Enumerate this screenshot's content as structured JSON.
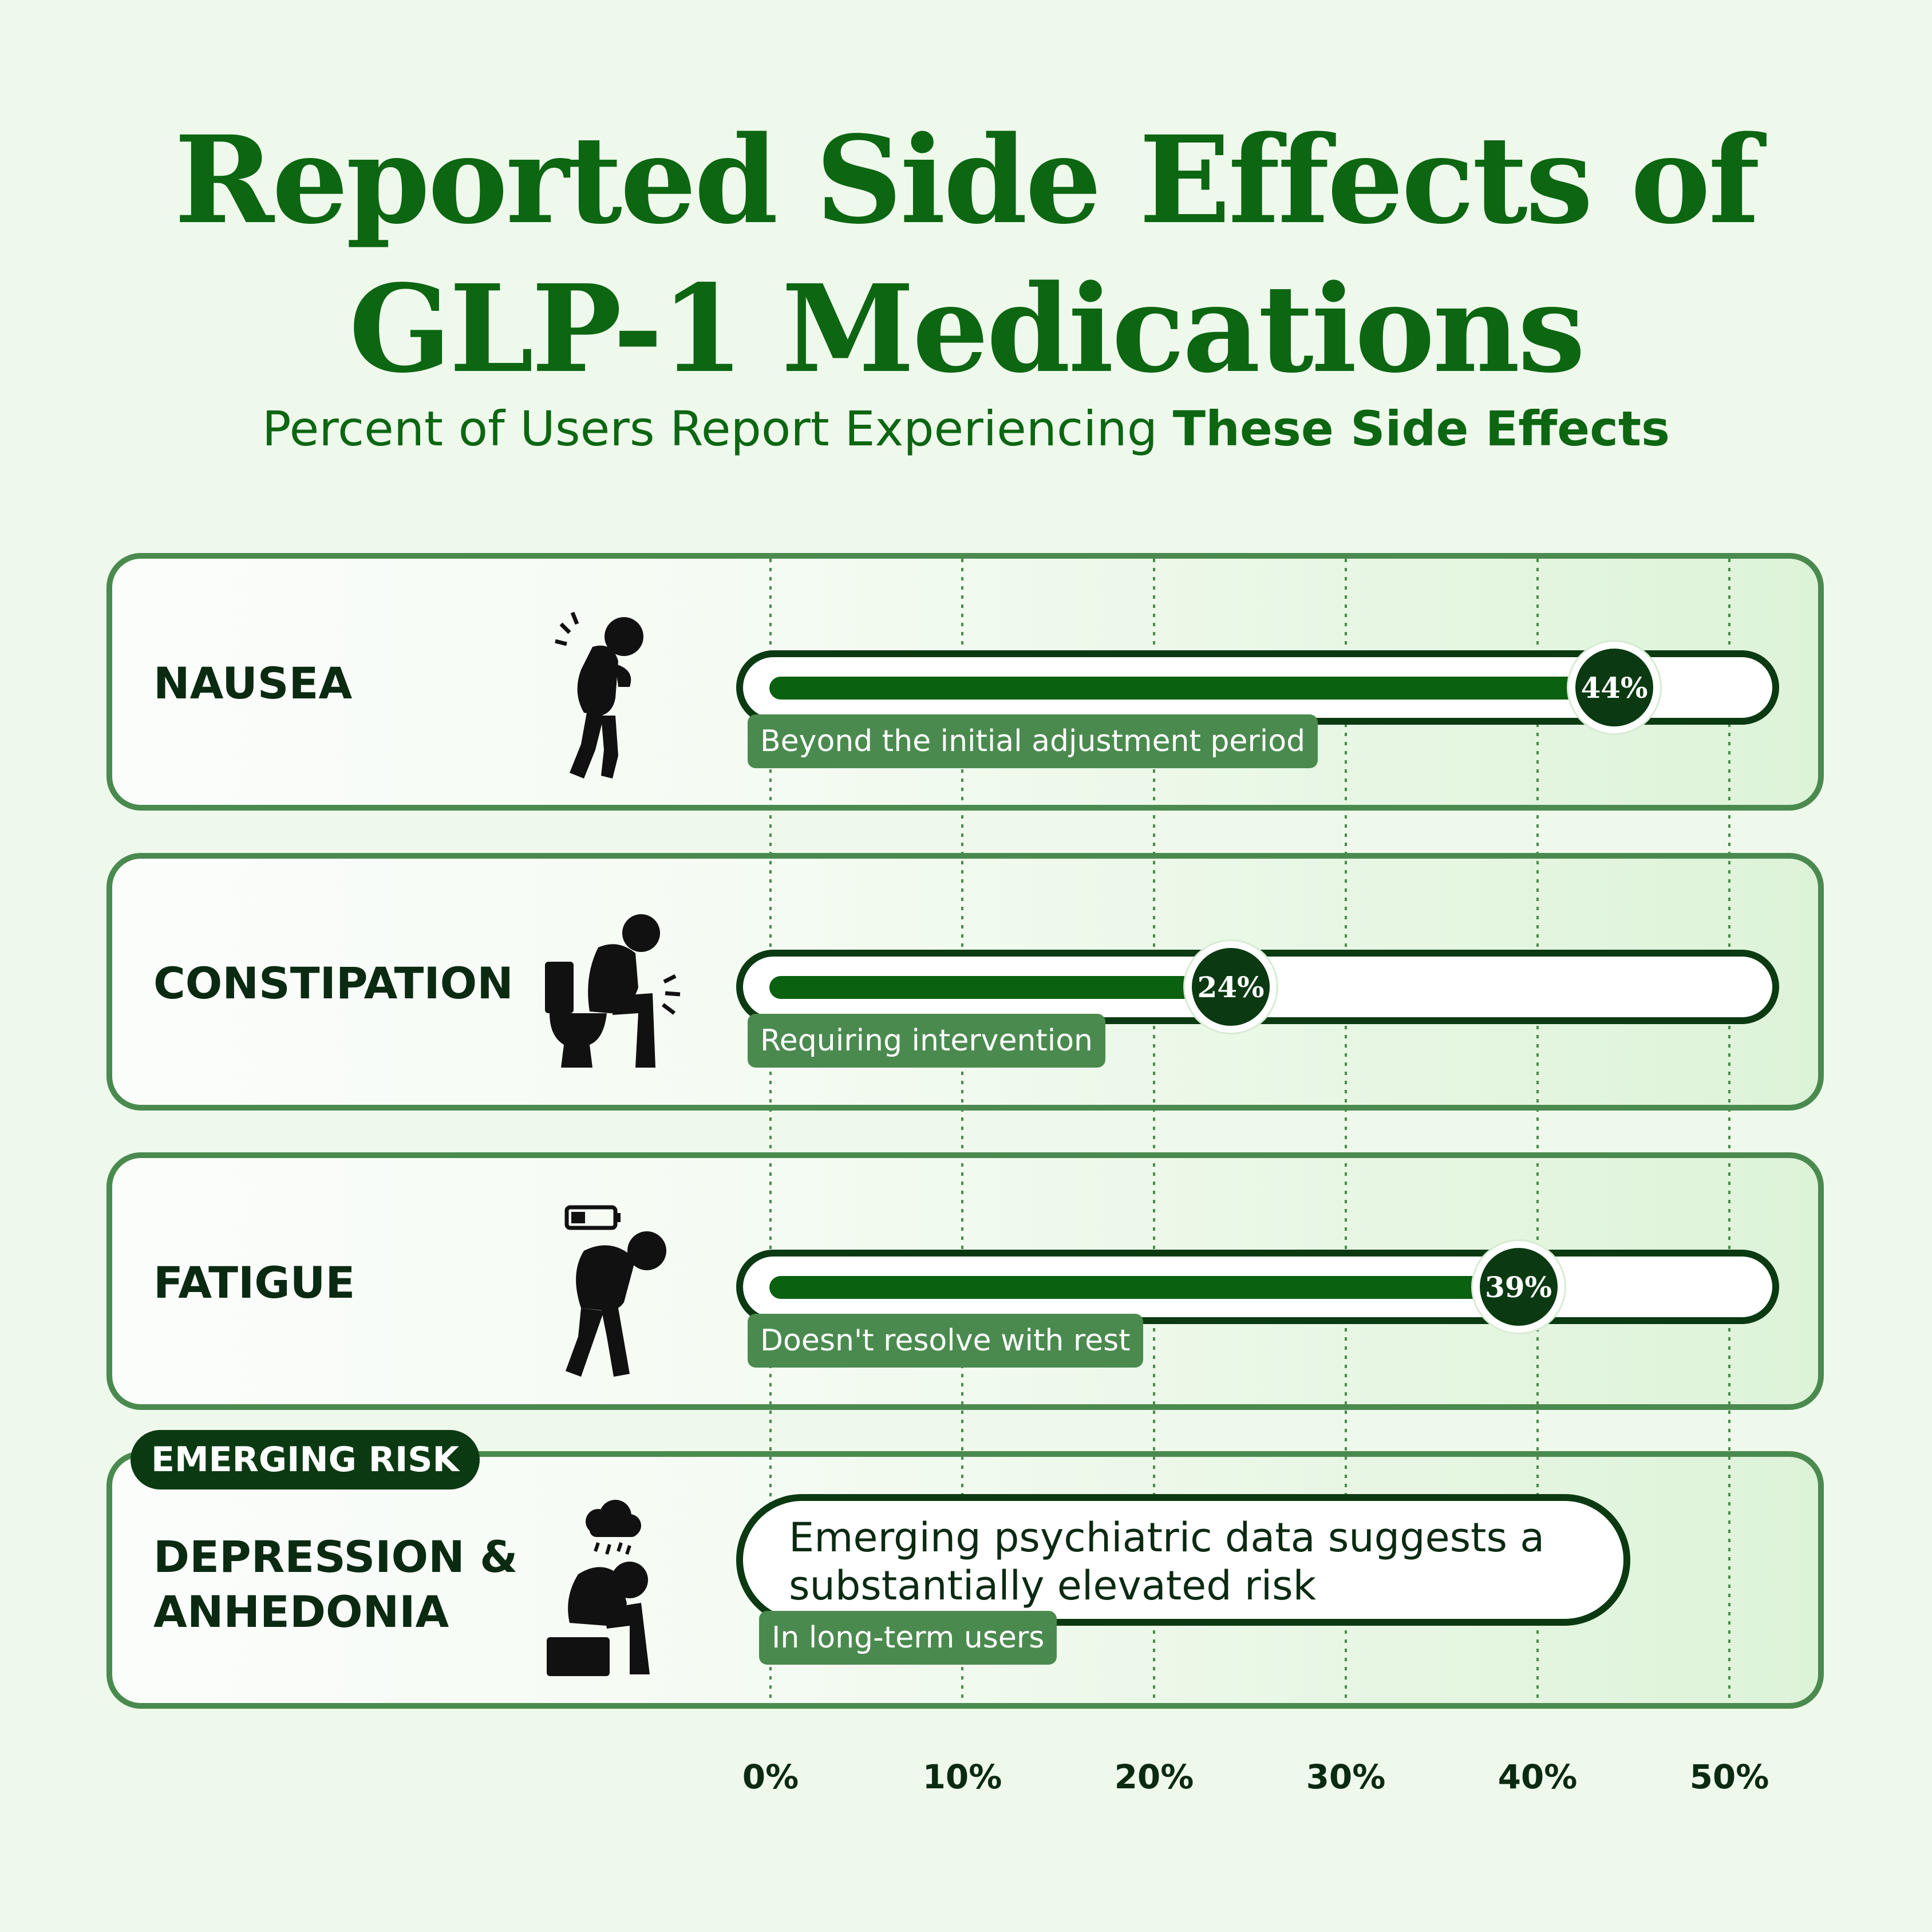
{
  "header": {
    "title_line1": "Reported Side Effects of",
    "title_line2": "GLP-1 Medications",
    "subtitle_plain": "Percent of Users Report Experiencing",
    "subtitle_bold": "These Side Effects"
  },
  "colors": {
    "title": "#0d6612",
    "bar_fill": "#0a6110",
    "bar_outline": "#0b3a12",
    "card_border": "#4b8a4f",
    "note_bg": "#4b8a4f",
    "background": "#eef9ec"
  },
  "rows": [
    {
      "label": "NAUSEA",
      "icon": "nausea-person-icon",
      "value_text": "44%",
      "note": "Beyond the initial adjustment period"
    },
    {
      "label": "CONSTIPATION",
      "icon": "toilet-person-icon",
      "value_text": "24%",
      "note": "Requiring intervention"
    },
    {
      "label": "FATIGUE",
      "icon": "low-battery-person-icon",
      "value_text": "39%",
      "note": "Doesn't resolve with rest"
    }
  ],
  "emerging": {
    "tag": "EMERGING RISK",
    "label_line1": "DEPRESSION &",
    "label_line2": "ANHEDONIA",
    "icon": "rain-cloud-person-icon",
    "text": "Emerging psychiatric data suggests a substantially elevated risk",
    "note": "In long-term users"
  },
  "chart_data": {
    "type": "bar",
    "orientation": "horizontal",
    "categories": [
      "NAUSEA",
      "CONSTIPATION",
      "FATIGUE"
    ],
    "values": [
      44,
      24,
      39
    ],
    "unit": "%",
    "xlim": [
      0,
      50
    ],
    "x_ticks": [
      "0%",
      "10%",
      "20%",
      "30%",
      "40%",
      "50%"
    ],
    "grid": true
  }
}
